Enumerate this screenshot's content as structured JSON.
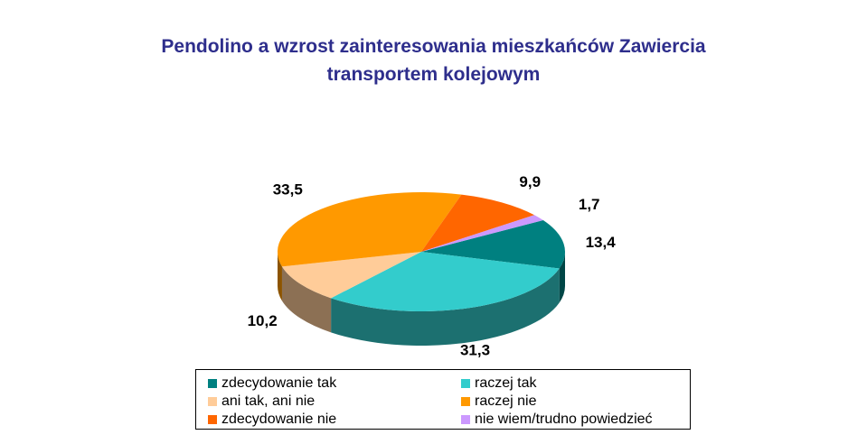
{
  "title_line1": "Pendolino a wzrost zainteresowania mieszkańców Zawiercia",
  "title_line2": "transportem kolejowym",
  "chart_data": {
    "type": "pie",
    "style": "3d",
    "title": "Pendolino a wzrost zainteresowania mieszkańców Zawiercia transportem kolejowym",
    "legend_position": "bottom",
    "slices": [
      {
        "label": "zdecydowanie tak",
        "value": 13.4,
        "display": "13,4",
        "color": "#008080"
      },
      {
        "label": "raczej tak",
        "value": 31.3,
        "display": "31,3",
        "color": "#33cccc"
      },
      {
        "label": "ani tak, ani nie",
        "value": 10.2,
        "display": "10,2",
        "color": "#ffcc99"
      },
      {
        "label": "raczej nie",
        "value": 33.5,
        "display": "33,5",
        "color": "#ff9900"
      },
      {
        "label": "zdecydowanie nie",
        "value": 9.9,
        "display": "9,9",
        "color": "#ff6600"
      },
      {
        "label": "nie wiem/trudno powiedzieć",
        "value": 1.7,
        "display": "1,7",
        "color": "#cc99ff"
      }
    ]
  }
}
